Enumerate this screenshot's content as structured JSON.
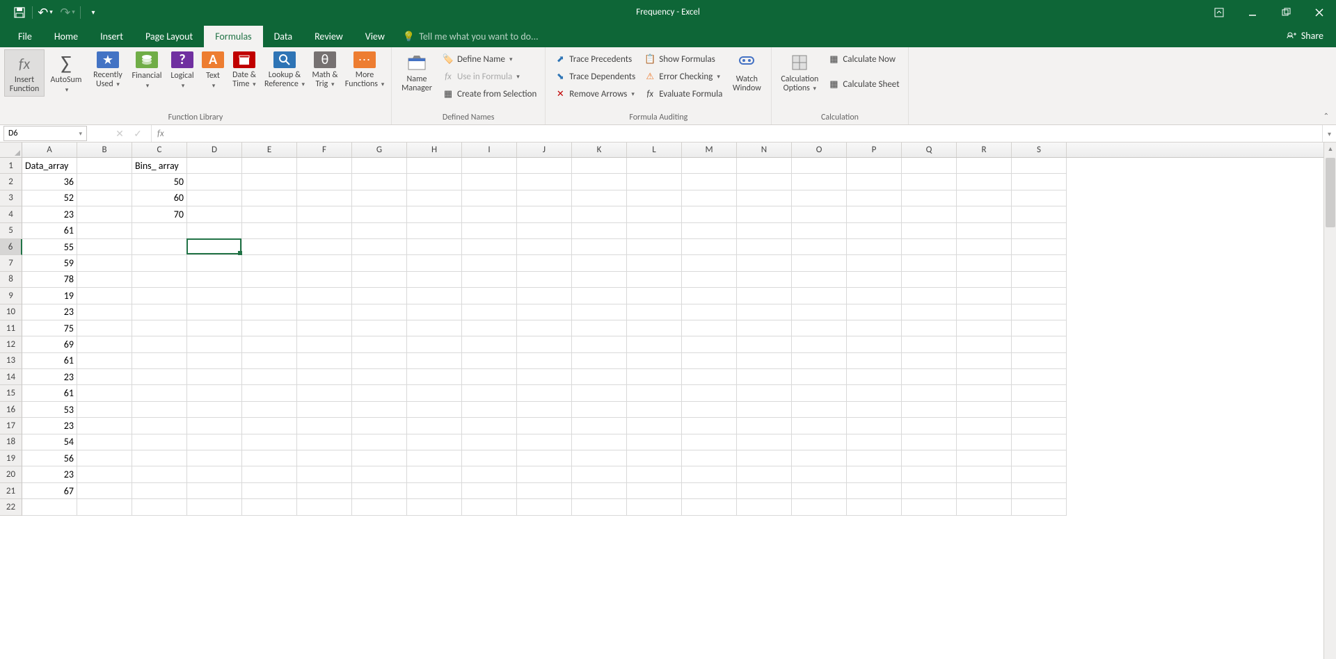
{
  "app": {
    "title": "Frequency - Excel"
  },
  "qat": {
    "save": "💾",
    "undo": "↶",
    "redo": "↷"
  },
  "tabs": {
    "file": "File",
    "home": "Home",
    "insert": "Insert",
    "page_layout": "Page Layout",
    "formulas": "Formulas",
    "data": "Data",
    "review": "Review",
    "view": "View"
  },
  "tell_me": "Tell me what you want to do...",
  "share": "Share",
  "ribbon": {
    "groups": {
      "function_library": "Function Library",
      "defined_names": "Defined Names",
      "formula_auditing": "Formula Auditing",
      "calculation": "Calculation"
    },
    "insert_function": "Insert\nFunction",
    "autosum": "AutoSum",
    "recently_used": "Recently\nUsed",
    "financial": "Financial",
    "logical": "Logical",
    "text": "Text",
    "date_time": "Date &\nTime",
    "lookup": "Lookup &\nReference",
    "math_trig": "Math &\nTrig",
    "more_functions": "More\nFunctions",
    "name_manager": "Name\nManager",
    "define_name": "Define Name",
    "use_in_formula": "Use in Formula",
    "create_from_selection": "Create from Selection",
    "trace_precedents": "Trace Precedents",
    "trace_dependents": "Trace Dependents",
    "remove_arrows": "Remove Arrows",
    "show_formulas": "Show Formulas",
    "error_checking": "Error Checking",
    "evaluate_formula": "Evaluate Formula",
    "watch_window": "Watch\nWindow",
    "calculation_options": "Calculation\nOptions",
    "calculate_now": "Calculate Now",
    "calculate_sheet": "Calculate Sheet"
  },
  "name_box": "D6",
  "columns": [
    "A",
    "B",
    "C",
    "D",
    "E",
    "F",
    "G",
    "H",
    "I",
    "J",
    "K",
    "L",
    "M",
    "N",
    "O",
    "P",
    "Q",
    "R",
    "S"
  ],
  "row_count": 22,
  "selected_row": 6,
  "selection": {
    "col_index": 3,
    "row_index": 5
  },
  "data": {
    "A1": "Data_array",
    "C1": "Bins_ array",
    "A2": "36",
    "C2": "50",
    "A3": "52",
    "C3": "60",
    "A4": "23",
    "C4": "70",
    "A5": "61",
    "A6": "55",
    "A7": "59",
    "A8": "78",
    "A9": "19",
    "A10": "23",
    "A11": "75",
    "A12": "69",
    "A13": "61",
    "A14": "23",
    "A15": "61",
    "A16": "53",
    "A17": "23",
    "A18": "54",
    "A19": "56",
    "A20": "23",
    "A21": "67"
  },
  "colors": {
    "title_bg": "#0e6637",
    "ribbon_bg": "#f3f2f1",
    "selection_border": "#217346",
    "icon_colors": {
      "star": "#4373c4",
      "stack": "#70ad47",
      "q": "#7030a0",
      "a": "#ed7d31",
      "clock": "#c00000",
      "lookup": "#2e74b5",
      "theta": "#767171",
      "dots": "#ed7d31"
    }
  }
}
